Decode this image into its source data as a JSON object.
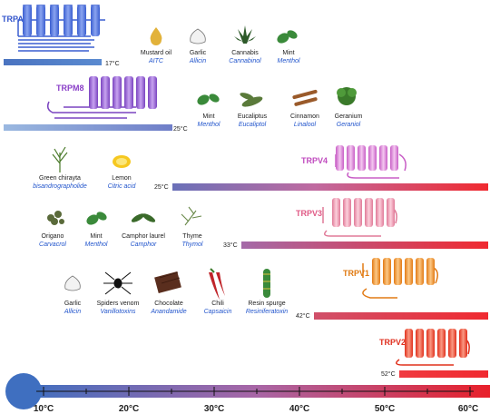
{
  "channels": [
    {
      "name": "TRPA1",
      "threshold": "17°C",
      "color": "#5b7be0",
      "label_color": "#3355cc"
    },
    {
      "name": "TRPM8",
      "threshold": "25°C",
      "color": "#9b66d6",
      "label_color": "#8a3fc8"
    },
    {
      "name": "TRPV4",
      "threshold": "25°C",
      "color": "#d98ad6",
      "label_color": "#c04cbf"
    },
    {
      "name": "TRPV3",
      "threshold": "33°C",
      "color": "#f09ab0",
      "label_color": "#e05a86"
    },
    {
      "name": "TRPV1",
      "threshold": "42°C",
      "color": "#f59a3a",
      "label_color": "#e07a10"
    },
    {
      "name": "TRPV2",
      "threshold": "52°C",
      "color": "#f0503a",
      "label_color": "#e03020"
    }
  ],
  "agonists": {
    "trpa1": [
      {
        "name": "Mustard oil",
        "compound": "AITC",
        "icon": "mustard-oil-drop-icon"
      },
      {
        "name": "Garlic",
        "compound": "Allicin",
        "icon": "garlic-icon"
      },
      {
        "name": "Cannabis",
        "compound": "Cannabinol",
        "icon": "cannabis-leaf-icon"
      },
      {
        "name": "Mint",
        "compound": "Menthol",
        "icon": "mint-leaf-icon"
      }
    ],
    "trpm8": [
      {
        "name": "Mint",
        "compound": "Menthol",
        "icon": "mint-leaf-icon"
      },
      {
        "name": "Eucaliptus",
        "compound": "Eucaliptol",
        "icon": "eucalyptus-leaf-icon"
      },
      {
        "name": "Cinnamon",
        "compound": "Linalool",
        "icon": "cinnamon-stick-icon"
      },
      {
        "name": "Geranium",
        "compound": "Geraniol",
        "icon": "geranium-leaf-icon"
      }
    ],
    "trpv4": [
      {
        "name": "Green chirayta",
        "compound": "bisandrographolide",
        "icon": "green-chirayta-icon"
      },
      {
        "name": "Lemon",
        "compound": "Citric acid",
        "icon": "lemon-icon"
      }
    ],
    "trpv3": [
      {
        "name": "Origano",
        "compound": "Carvacrol",
        "icon": "oregano-icon"
      },
      {
        "name": "Mint",
        "compound": "Menthol",
        "icon": "mint-leaf-icon"
      },
      {
        "name": "Camphor laurel",
        "compound": "Camphor",
        "icon": "camphor-leaf-icon"
      },
      {
        "name": "Thyme",
        "compound": "Thymol",
        "icon": "thyme-icon"
      }
    ],
    "trpv1": [
      {
        "name": "Garlic",
        "compound": "Allicin",
        "icon": "garlic-icon"
      },
      {
        "name": "Spiders venom",
        "compound": "Vanillotoxins",
        "icon": "spider-icon"
      },
      {
        "name": "Chocolate",
        "compound": "Anandamide",
        "icon": "chocolate-icon"
      },
      {
        "name": "Chili",
        "compound": "Capsaicin",
        "icon": "chili-pepper-icon"
      },
      {
        "name": "Resin spurge",
        "compound": "Resiniferatoxin",
        "icon": "resin-spurge-icon"
      }
    ]
  },
  "scale": {
    "ticks": [
      "10°C",
      "20°C",
      "30°C",
      "40°C",
      "50°C",
      "60°C"
    ],
    "start_color": "#3f6fc0",
    "end_color": "#e8202a"
  }
}
